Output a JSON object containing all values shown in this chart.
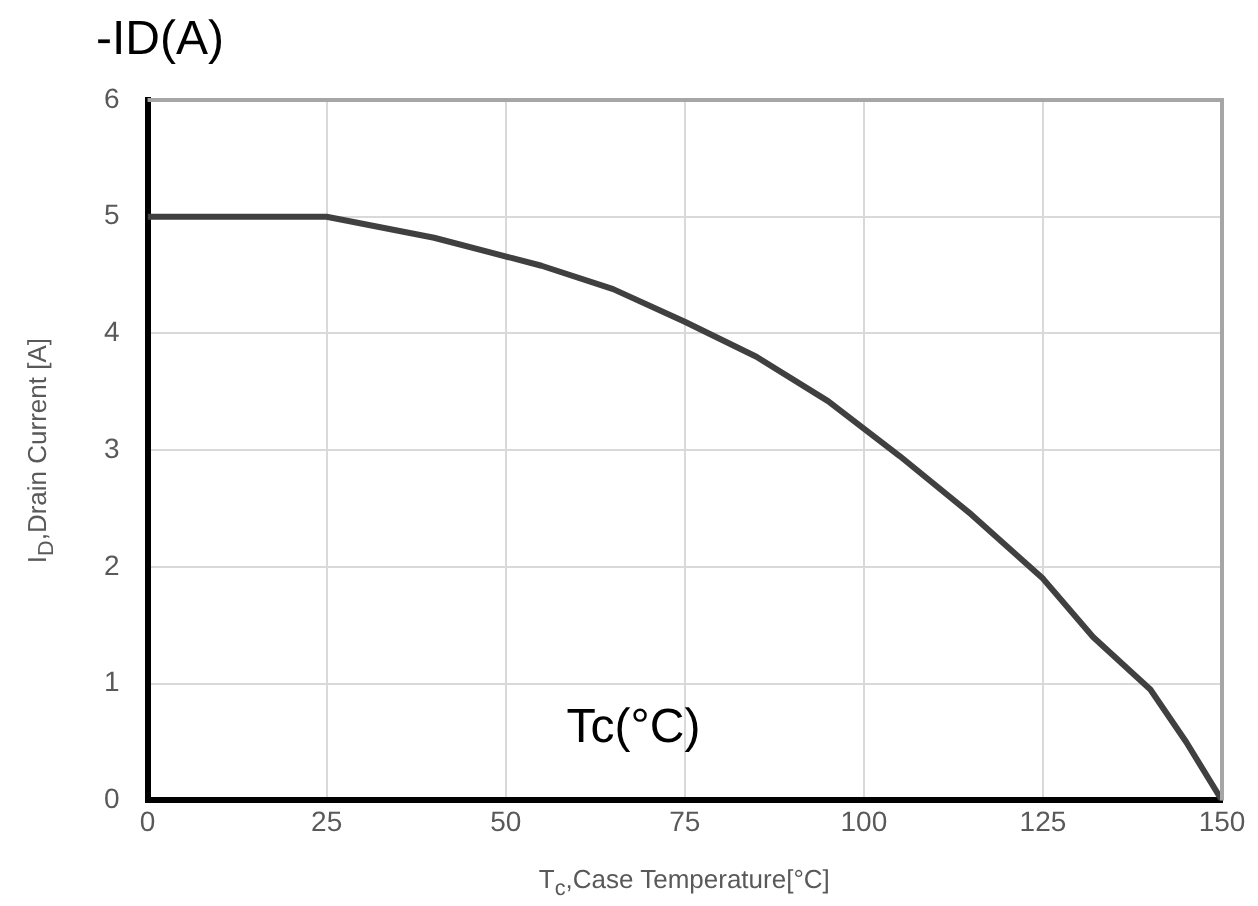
{
  "chart_data": {
    "type": "line",
    "xlabel": "T$_{c}$,Case Temperature[°C]",
    "ylabel": "I$_{D}$,Drain Current [A]",
    "annotations": [
      "-ID(A)",
      "Tc(°C)"
    ],
    "x": [
      0,
      25,
      40,
      55,
      65,
      75,
      85,
      95,
      105,
      115,
      125,
      132,
      140,
      145,
      150
    ],
    "series": [
      {
        "color": "#404040",
        "values": [
          5,
          5,
          4.82,
          4.58,
          4.38,
          4.1,
          3.8,
          3.42,
          2.95,
          2.45,
          1.9,
          1.4,
          0.95,
          0.5,
          0
        ]
      }
    ],
    "xlim": [
      0,
      150
    ],
    "xticks": [
      0,
      25,
      50,
      75,
      100,
      125,
      150
    ],
    "ylim": [
      0,
      6
    ],
    "yticks": [
      0,
      1,
      2,
      3,
      4,
      5,
      6
    ],
    "grid": true,
    "legend": false,
    "marker": "none",
    "line_style": "solid"
  }
}
